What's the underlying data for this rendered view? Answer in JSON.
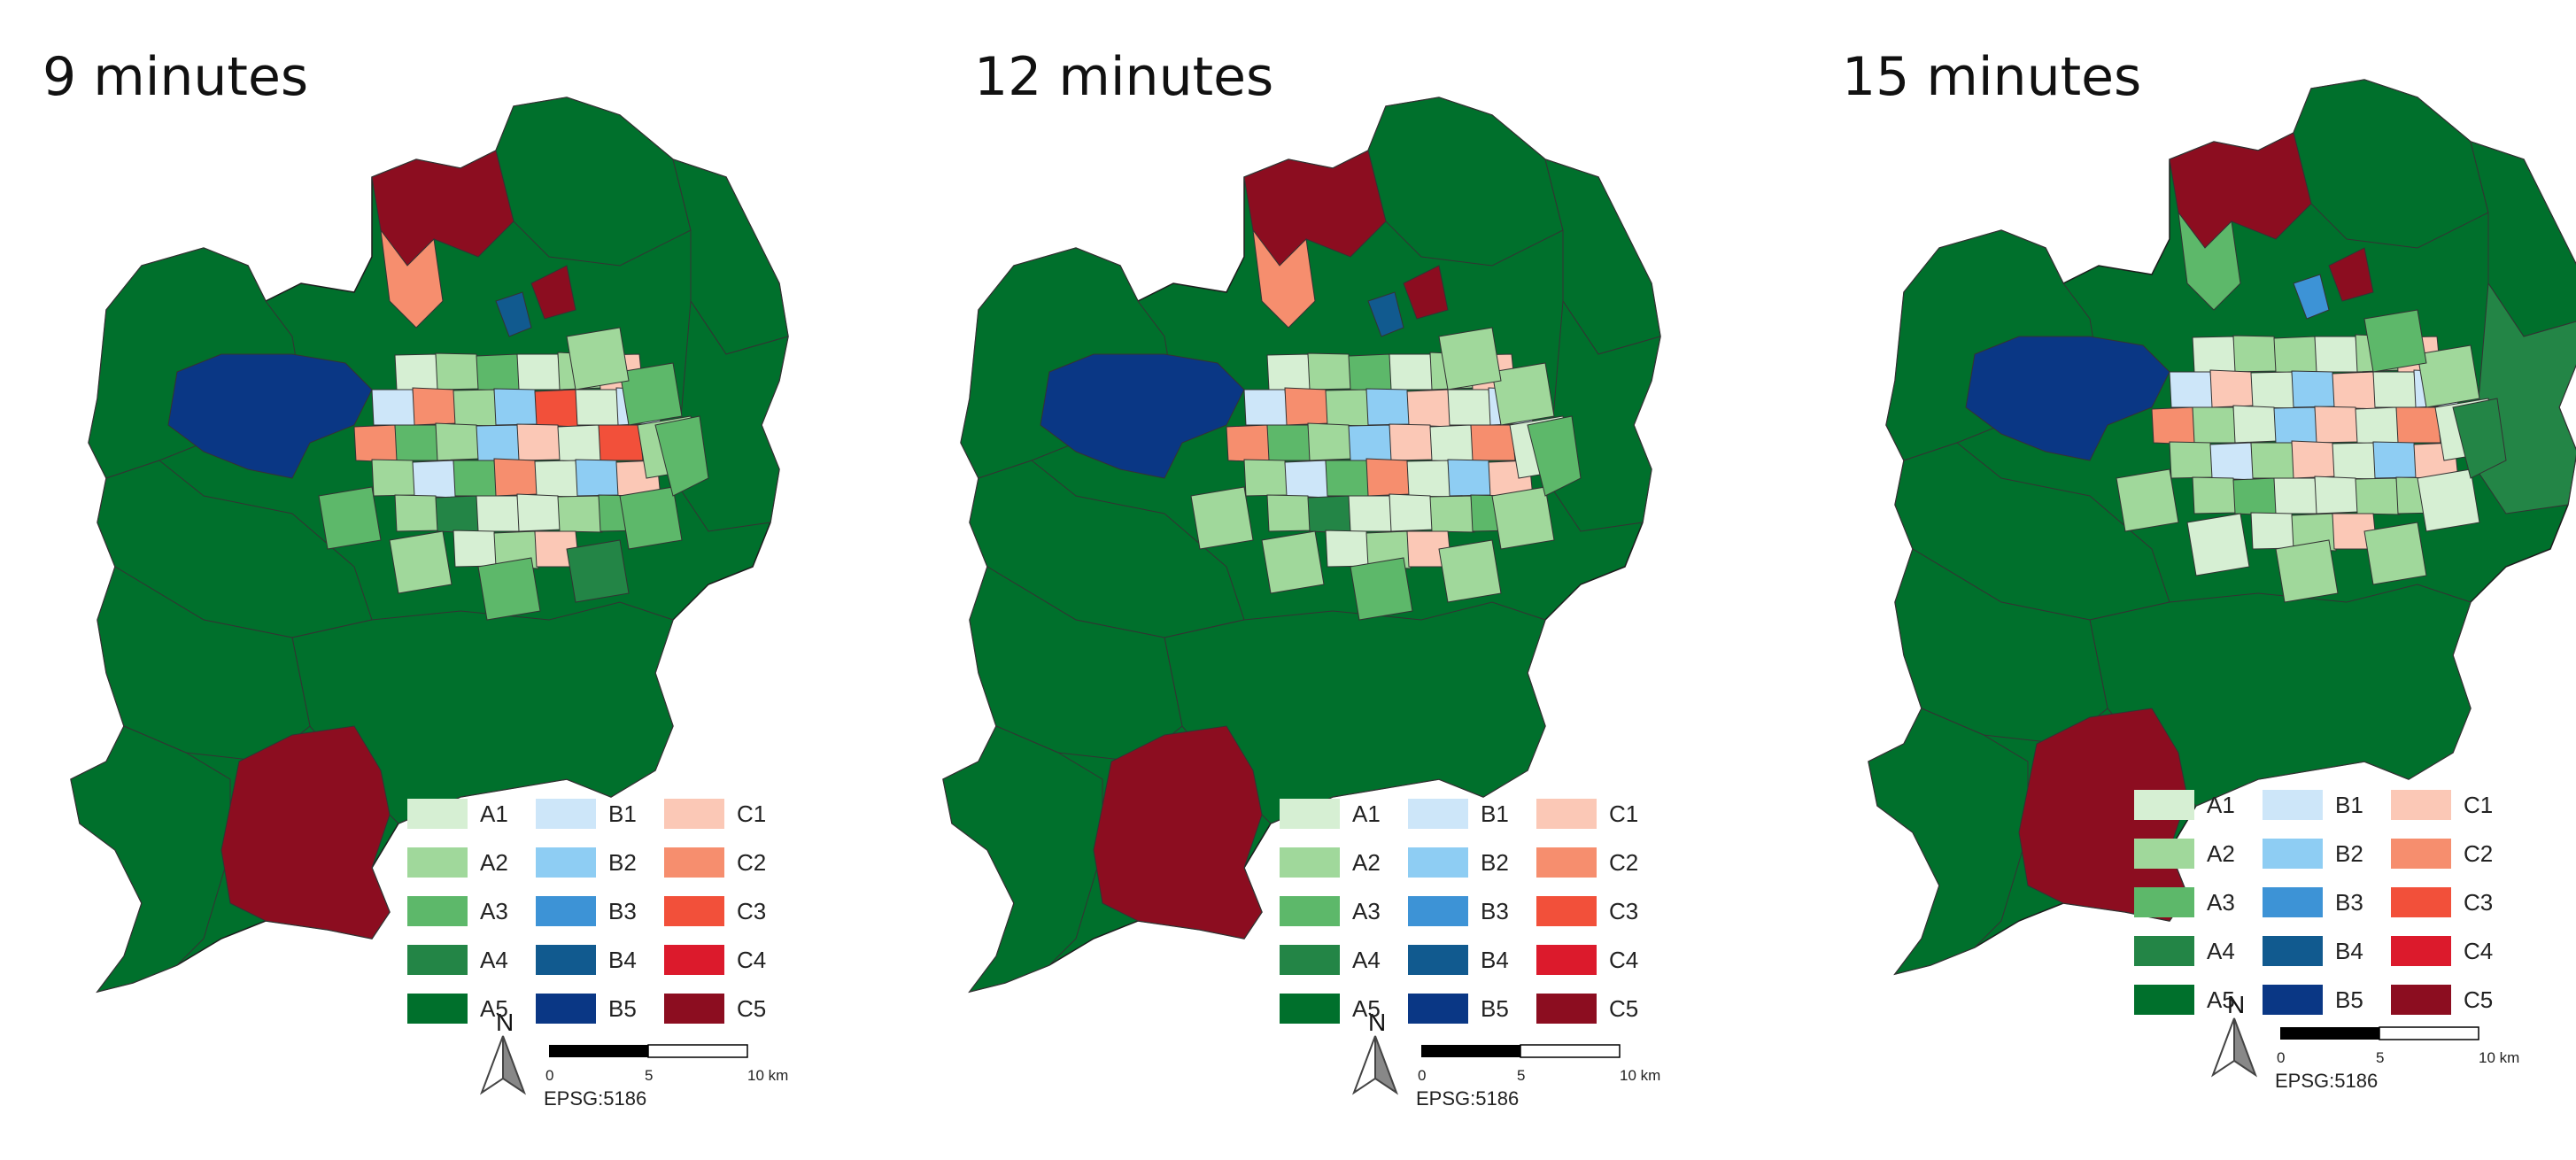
{
  "panels": [
    {
      "title": "9 minutes"
    },
    {
      "title": "12 minutes"
    },
    {
      "title": "15 minutes"
    }
  ],
  "legend": [
    {
      "label": "A1",
      "color": "#d6efd3"
    },
    {
      "label": "A2",
      "color": "#a0d89b"
    },
    {
      "label": "A3",
      "color": "#5db86a"
    },
    {
      "label": "A4",
      "color": "#238546"
    },
    {
      "label": "A5",
      "color": "#00702c"
    },
    {
      "label": "B1",
      "color": "#cde6f9"
    },
    {
      "label": "B2",
      "color": "#8ecdf3"
    },
    {
      "label": "B3",
      "color": "#3d93d6"
    },
    {
      "label": "B4",
      "color": "#115a8f"
    },
    {
      "label": "B5",
      "color": "#0a3785"
    },
    {
      "label": "C1",
      "color": "#fbc8b6"
    },
    {
      "label": "C2",
      "color": "#f68e6e"
    },
    {
      "label": "C3",
      "color": "#f2503a"
    },
    {
      "label": "C4",
      "color": "#dc1a2c"
    },
    {
      "label": "C5",
      "color": "#8c0d20"
    }
  ],
  "north_label": "N",
  "scale": {
    "ticks": [
      "0",
      "5",
      "10 km"
    ]
  },
  "crs": "EPSG:5186"
}
